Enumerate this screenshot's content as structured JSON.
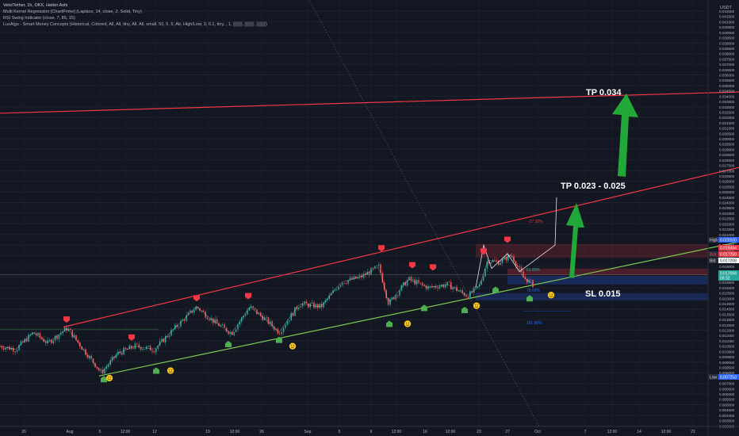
{
  "header": {
    "symbol_line": "Velo/Tether, 1h, OKX, Heikin Ashi",
    "indicators": [
      "Multi Kernel Regression [ChartPrime] (Laplace, 14, close, 2, Solid, Tiny)",
      "RSI Swing Indicator (close, 7, 85, 15)",
      "LuxAlgo - Smart Money Concepts (Historical, Colored, All, All, tiny, All, All, small, 50, 5, 5, Atr, High/Low, 3, 0.1, tiny, , 1, ▒▒▒, ▒▒▒, ▒▒▒)"
    ]
  },
  "currency_label": "USDT",
  "annotations": {
    "tp_high": "TP 0.034",
    "tp_mid": "TP 0.023 - 0.025",
    "sl": "SL 0.015"
  },
  "price_tags": {
    "high_label": "High",
    "high_value": "0.020100",
    "low_label": "Low",
    "low_value": "0.007253",
    "ask_label": "Ask",
    "ask_value": "0.017250",
    "bid_label": "Bid",
    "bid_value": "0.017208",
    "red_tag": "0.019384",
    "green_tag": "0.017094",
    "green_sub": "59:32"
  },
  "fib_labels": {
    "f1": "-27.20%",
    "f2": "61.80%",
    "f3": "78.60%",
    "f4": "161.80%"
  },
  "colors": {
    "background": "#131722",
    "resistance": "#f23645",
    "support": "#7ec850",
    "arrow": "#22a838",
    "bull_marker": "#4caf50",
    "bear_marker": "#f23645",
    "emoji": "#f5c518"
  },
  "chart_data": {
    "type": "candlestick",
    "y_axis": {
      "min": 0.0025,
      "max": 0.042,
      "step": 0.0005,
      "tick_labels": [
        "0.042000",
        "0.041500",
        "0.041000",
        "0.040500",
        "0.040000",
        "0.039500",
        "0.039000",
        "0.038500",
        "0.038000",
        "0.037500",
        "0.037000",
        "0.036500",
        "0.036000",
        "0.035500",
        "0.035000",
        "0.034500",
        "0.034000",
        "0.033500",
        "0.033000",
        "0.032500",
        "0.032000",
        "0.031500",
        "0.031000",
        "0.030500",
        "0.030000",
        "0.029500",
        "0.029000",
        "0.028500",
        "0.028000",
        "0.027500",
        "0.027000",
        "0.026500",
        "0.026000",
        "0.025500",
        "0.025000",
        "0.024500",
        "0.024000",
        "0.023500",
        "0.023000",
        "0.022500",
        "0.022000",
        "0.021500",
        "0.021000",
        "0.020500",
        "0.020000",
        "0.019500",
        "0.019000",
        "0.018500",
        "0.018000",
        "0.017500",
        "0.017000",
        "0.016500",
        "0.016000",
        "0.015500",
        "0.015000",
        "0.014500",
        "0.014000",
        "0.013500",
        "0.013000",
        "0.012500",
        "0.012000",
        "0.011500",
        "0.011000",
        "0.010500",
        "0.010000",
        "0.009500",
        "0.009000",
        "0.008500",
        "0.008000",
        "0.007500",
        "0.007000",
        "0.006500",
        "0.006000",
        "0.005500",
        "0.005000",
        "0.004500",
        "0.004000",
        "0.003500",
        "0.003000"
      ]
    },
    "x_axis": {
      "tick_labels": [
        "26",
        "Aug",
        "5",
        "12:00",
        "12",
        "19",
        "12:00",
        "26",
        "Sep",
        "5",
        "9",
        "12:00",
        "16",
        "12:00",
        "23",
        "27",
        "Oct",
        "7",
        "12:00",
        "14",
        "12:00",
        "21"
      ]
    },
    "price_path": [
      [
        0,
        0.0105
      ],
      [
        20,
        0.0102
      ],
      [
        42,
        0.0118
      ],
      [
        60,
        0.0108
      ],
      [
        85,
        0.0122
      ],
      [
        105,
        0.0102
      ],
      [
        128,
        0.008
      ],
      [
        148,
        0.0098
      ],
      [
        170,
        0.0105
      ],
      [
        195,
        0.0102
      ],
      [
        215,
        0.0118
      ],
      [
        248,
        0.0142
      ],
      [
        270,
        0.0128
      ],
      [
        292,
        0.0117
      ],
      [
        315,
        0.0142
      ],
      [
        335,
        0.013
      ],
      [
        352,
        0.0118
      ],
      [
        378,
        0.0145
      ],
      [
        405,
        0.0142
      ],
      [
        430,
        0.0165
      ],
      [
        455,
        0.017
      ],
      [
        478,
        0.018
      ],
      [
        490,
        0.0145
      ],
      [
        515,
        0.0168
      ],
      [
        540,
        0.016
      ],
      [
        565,
        0.0163
      ],
      [
        590,
        0.0152
      ],
      [
        605,
        0.0162
      ],
      [
        615,
        0.0186
      ],
      [
        630,
        0.0184
      ],
      [
        645,
        0.0191
      ],
      [
        660,
        0.017
      ],
      [
        672,
        0.0163
      ]
    ],
    "lines": {
      "resistance_upper": {
        "points": [
          [
            0,
            0.0324
          ],
          [
            932,
            0.0344
          ]
        ]
      },
      "resistance_channel": {
        "points": [
          [
            80,
            0.0123
          ],
          [
            932,
            0.0273
          ]
        ]
      },
      "support_channel": {
        "points": [
          [
            125,
            0.0077
          ],
          [
            932,
            0.0203
          ]
        ]
      }
    },
    "markers": {
      "bear": [
        [
          84,
          0.013
        ],
        [
          166,
          0.0113
        ],
        [
          248,
          0.015
        ],
        [
          313,
          0.0152
        ],
        [
          481,
          0.0197
        ],
        [
          520,
          0.0181
        ],
        [
          546,
          0.0179
        ],
        [
          610,
          0.0194
        ],
        [
          640,
          0.0205
        ]
      ],
      "bull": [
        [
          131,
          0.0074
        ],
        [
          197,
          0.0082
        ],
        [
          288,
          0.0107
        ],
        [
          352,
          0.0111
        ],
        [
          491,
          0.0126
        ],
        [
          535,
          0.0141
        ],
        [
          586,
          0.0139
        ],
        [
          625,
          0.0158
        ],
        [
          668,
          0.015
        ]
      ],
      "emoji": [
        [
          138,
          0.0075
        ],
        [
          215,
          0.0082
        ],
        [
          369,
          0.0105
        ],
        [
          514,
          0.0126
        ],
        [
          601,
          0.0143
        ],
        [
          695,
          0.0153
        ]
      ]
    }
  }
}
